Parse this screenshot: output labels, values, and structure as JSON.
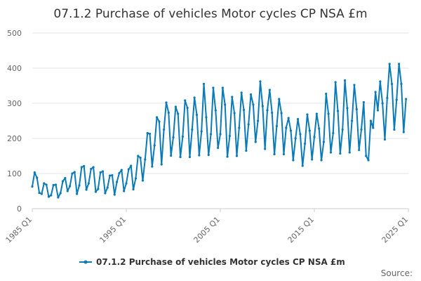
{
  "chart_data": {
    "type": "line",
    "title": "07.1.2 Purchase of vehicles Motor cycles CP NSA £m",
    "xlabel": "",
    "ylabel": "",
    "ylim": [
      0,
      500
    ],
    "yticks": [
      0,
      100,
      200,
      300,
      400,
      500
    ],
    "xticks": [
      "1985 Q1",
      "1995 Q1",
      "2005 Q1",
      "2015 Q1",
      "2025 Q1"
    ],
    "grid": true,
    "legend_position": "bottom",
    "source_label": "Source:",
    "series": [
      {
        "name": "07.1.2 Purchase of vehicles Motor cycles CP NSA £m",
        "color": "#0a7ab8",
        "start": "1985 Q1",
        "values": [
          63,
          103,
          88,
          45,
          42,
          72,
          68,
          34,
          38,
          67,
          68,
          32,
          44,
          78,
          87,
          50,
          64,
          100,
          104,
          42,
          66,
          118,
          121,
          54,
          72,
          113,
          118,
          48,
          56,
          103,
          106,
          44,
          60,
          94,
          95,
          40,
          76,
          101,
          110,
          50,
          72,
          112,
          122,
          55,
          86,
          150,
          145,
          80,
          140,
          215,
          213,
          120,
          180,
          260,
          248,
          126,
          225,
          302,
          273,
          151,
          203,
          290,
          270,
          147,
          205,
          308,
          287,
          147,
          225,
          316,
          267,
          152,
          220,
          355,
          260,
          153,
          212,
          344,
          280,
          173,
          212,
          344,
          296,
          148,
          207,
          318,
          272,
          150,
          230,
          330,
          281,
          165,
          240,
          325,
          296,
          190,
          250,
          362,
          292,
          170,
          280,
          338,
          273,
          155,
          235,
          312,
          272,
          155,
          230,
          258,
          222,
          138,
          200,
          255,
          212,
          122,
          185,
          268,
          222,
          140,
          204,
          270,
          228,
          138,
          190,
          327,
          270,
          160,
          215,
          360,
          278,
          157,
          225,
          365,
          286,
          160,
          250,
          352,
          283,
          167,
          225,
          303,
          150,
          138,
          250,
          230,
          332,
          280,
          362,
          300,
          197,
          315,
          412,
          355,
          225,
          310,
          412,
          355,
          218,
          312
        ]
      }
    ]
  }
}
